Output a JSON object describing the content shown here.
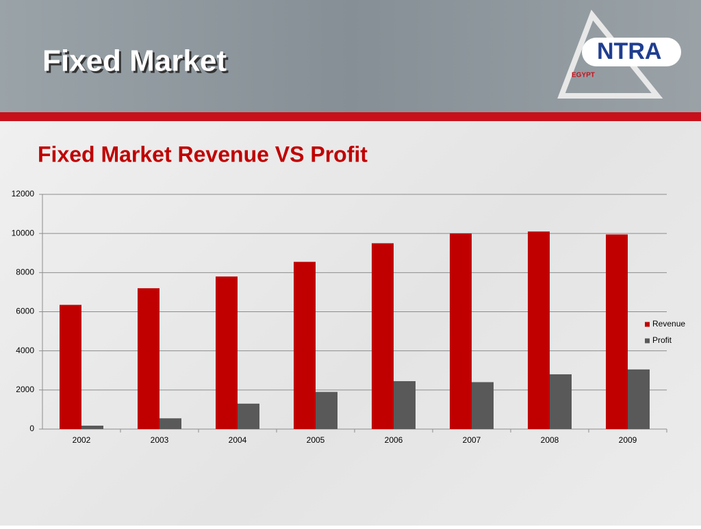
{
  "slide_title": "Fixed Market",
  "logo": {
    "name": "NTRA",
    "country": "EGYPT"
  },
  "chart_data": {
    "type": "bar",
    "title": "Fixed Market Revenue VS Profit",
    "categories": [
      "2002",
      "2003",
      "2004",
      "2005",
      "2006",
      "2007",
      "2008",
      "2009"
    ],
    "series": [
      {
        "name": "Revenue",
        "color": "#c00000",
        "values": [
          6350,
          7200,
          7800,
          8550,
          9500,
          10000,
          10100,
          9950
        ]
      },
      {
        "name": "Profit",
        "color": "#595959",
        "values": [
          175,
          550,
          1300,
          1900,
          2450,
          2400,
          2800,
          3050
        ]
      }
    ],
    "ylim": [
      0,
      12000
    ],
    "yticks": [
      0,
      2000,
      4000,
      6000,
      8000,
      10000,
      12000
    ],
    "grid": true,
    "legend": "right"
  }
}
